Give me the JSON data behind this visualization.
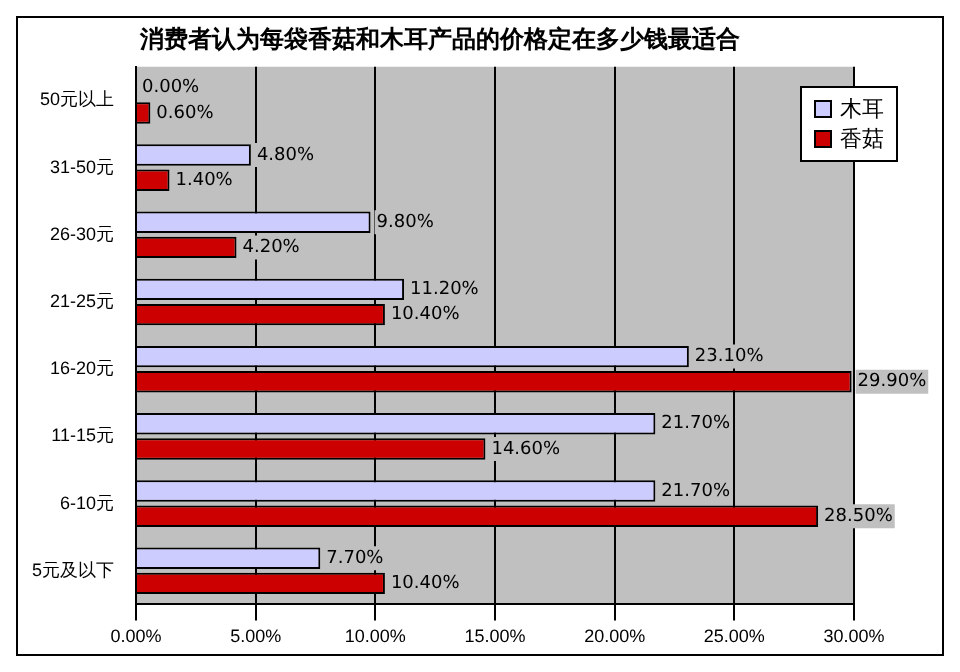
{
  "chart_data": {
    "type": "bar",
    "orientation": "horizontal",
    "title": "消费者认为每袋香菇和木耳产品的价格定在多少钱最适合",
    "categories": [
      "50元以上",
      "31-50元",
      "26-30元",
      "21-25元",
      "16-20元",
      "11-15元",
      "6-10元",
      "5元及以下"
    ],
    "series": [
      {
        "name": "木耳",
        "color": "#ccccff",
        "values": [
          0.0,
          4.8,
          9.8,
          11.2,
          23.1,
          21.7,
          21.7,
          7.7
        ],
        "value_labels": [
          "0.00%",
          "4.80%",
          "9.80%",
          "11.20%",
          "23.10%",
          "21.70%",
          "21.70%",
          "7.70%"
        ]
      },
      {
        "name": "香菇",
        "color": "#cc0000",
        "values": [
          0.6,
          1.4,
          4.2,
          10.4,
          29.9,
          14.6,
          28.5,
          10.4
        ],
        "value_labels": [
          "0.60%",
          "1.40%",
          "4.20%",
          "10.40%",
          "29.90%",
          "14.60%",
          "28.50%",
          "10.40%"
        ]
      }
    ],
    "xlim": [
      0,
      30
    ],
    "xticks": [
      {
        "value": 0,
        "label": "0.00%"
      },
      {
        "value": 5,
        "label": "5.00%"
      },
      {
        "value": 10,
        "label": "10.00%"
      },
      {
        "value": 15,
        "label": "15.00%"
      },
      {
        "value": 20,
        "label": "20.00%"
      },
      {
        "value": 25,
        "label": "25.00%"
      },
      {
        "value": 30,
        "label": "30.00%"
      }
    ],
    "grid": "x",
    "legend": "top right"
  }
}
